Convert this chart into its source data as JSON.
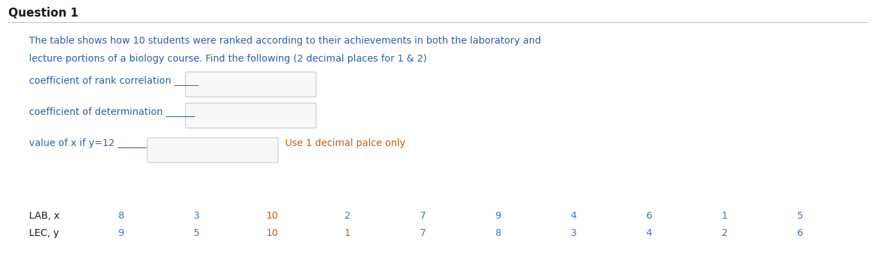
{
  "title": "Question 1",
  "line1": "The table shows how 10 students were ranked according to their achievements in both the laboratory and",
  "line2": "lecture portions of a biology course. Find the following (2 decimal places for 1 & 2)",
  "label1_text": "coefficient of rank correlation _____",
  "label2_text": "coefficient of determination ______",
  "label3_text": "value of x if y=12 ______",
  "label3b_text": "Use 1 decimal palce only",
  "row1_label": "LAB, x",
  "row2_label": "LEC, y",
  "row1_values": [
    8,
    3,
    10,
    2,
    7,
    9,
    4,
    6,
    1,
    5
  ],
  "row2_values": [
    9,
    5,
    10,
    1,
    7,
    8,
    3,
    4,
    2,
    6
  ],
  "bg_color": "#ffffff",
  "title_color": "#1a1a1a",
  "text_color": "#2e5fa3",
  "data_color": "#4472c4",
  "orange_color": "#c55a11",
  "box_edge_color": "#c0c0c0",
  "box_face_color": "#f8f8f8",
  "sep_line_color": "#c0c0c0",
  "title_fontsize": 11,
  "body_fontsize": 10,
  "data_fontsize": 10
}
